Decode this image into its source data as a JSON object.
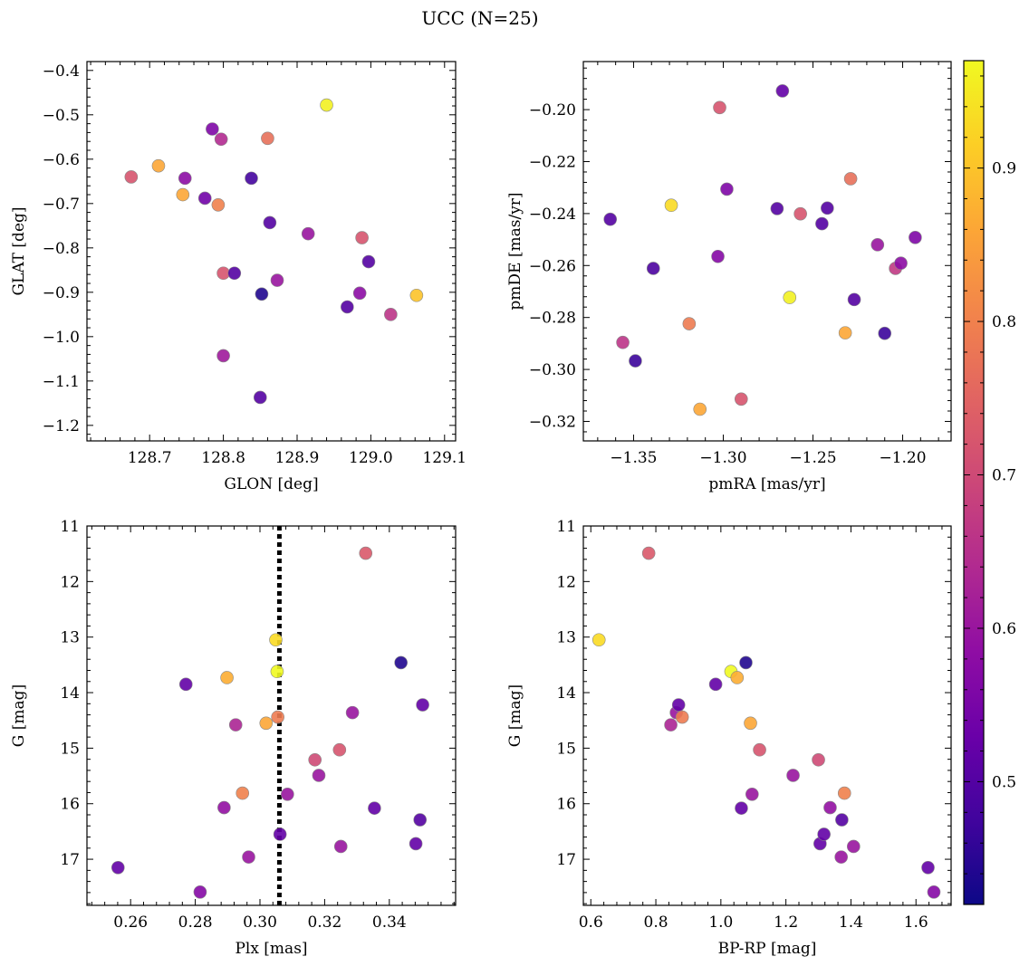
{
  "figure": {
    "suptitle": "UCC (N=25)"
  },
  "colorbar": {
    "cmap": "plasma",
    "range": [
      0.42,
      0.97
    ],
    "ticks": [
      0.5,
      0.6,
      0.7,
      0.8,
      0.9
    ]
  },
  "chart_data": [
    {
      "type": "scatter",
      "id": "glon-glat",
      "xlabel": "GLON [deg]",
      "ylabel": "GLAT [deg]",
      "xlim": [
        128.615,
        129.115
      ],
      "ylim": [
        -1.235,
        -0.38
      ],
      "ylim_inverted": false,
      "xticks": [
        128.7,
        128.8,
        128.9,
        129.0,
        129.1
      ],
      "xtick_labels": [
        "128.7",
        "128.8",
        "128.9",
        "129.0",
        "129.1"
      ],
      "yticks": [
        -1.2,
        -1.1,
        -1.0,
        -0.9,
        -0.8,
        -0.7,
        -0.6,
        -0.5,
        -0.4
      ],
      "ytick_labels": [
        "−1.2",
        "−1.1",
        "−1.0",
        "−0.9",
        "−0.8",
        "−0.7",
        "−0.6",
        "−0.5",
        "−0.4"
      ],
      "points": [
        {
          "x": 128.675,
          "y": -0.64,
          "c": 0.72
        },
        {
          "x": 128.712,
          "y": -0.615,
          "c": 0.86
        },
        {
          "x": 128.745,
          "y": -0.68,
          "c": 0.86
        },
        {
          "x": 128.748,
          "y": -0.643,
          "c": 0.58
        },
        {
          "x": 128.775,
          "y": -0.688,
          "c": 0.54
        },
        {
          "x": 128.785,
          "y": -0.532,
          "c": 0.56
        },
        {
          "x": 128.793,
          "y": -0.703,
          "c": 0.8
        },
        {
          "x": 128.797,
          "y": -0.555,
          "c": 0.64
        },
        {
          "x": 128.8,
          "y": -0.857,
          "c": 0.72
        },
        {
          "x": 128.8,
          "y": -1.043,
          "c": 0.61
        },
        {
          "x": 128.815,
          "y": -0.857,
          "c": 0.5
        },
        {
          "x": 128.838,
          "y": -0.643,
          "c": 0.48
        },
        {
          "x": 128.85,
          "y": -1.137,
          "c": 0.5
        },
        {
          "x": 128.852,
          "y": -0.904,
          "c": 0.44
        },
        {
          "x": 128.86,
          "y": -0.553,
          "c": 0.77
        },
        {
          "x": 128.863,
          "y": -0.743,
          "c": 0.5
        },
        {
          "x": 128.873,
          "y": -0.873,
          "c": 0.6
        },
        {
          "x": 128.915,
          "y": -0.768,
          "c": 0.6
        },
        {
          "x": 128.94,
          "y": -0.478,
          "c": 0.96
        },
        {
          "x": 128.968,
          "y": -0.933,
          "c": 0.5
        },
        {
          "x": 128.985,
          "y": -0.902,
          "c": 0.58
        },
        {
          "x": 128.988,
          "y": -0.777,
          "c": 0.72
        },
        {
          "x": 128.997,
          "y": -0.831,
          "c": 0.5
        },
        {
          "x": 129.027,
          "y": -0.95,
          "c": 0.66
        },
        {
          "x": 129.062,
          "y": -0.907,
          "c": 0.9
        }
      ]
    },
    {
      "type": "scatter",
      "id": "pmra-pmde",
      "xlabel": "pmRA [mas/yr]",
      "ylabel": "pmDE [mas/yr]",
      "xlim": [
        -1.378,
        -1.173
      ],
      "ylim": [
        -0.3275,
        -0.1815
      ],
      "ylim_inverted": false,
      "xticks": [
        -1.35,
        -1.3,
        -1.25,
        -1.2
      ],
      "xtick_labels": [
        "−1.35",
        "−1.30",
        "−1.25",
        "−1.20"
      ],
      "yticks": [
        -0.32,
        -0.3,
        -0.28,
        -0.26,
        -0.24,
        -0.22,
        -0.2
      ],
      "ytick_labels": [
        "−0.32",
        "−0.30",
        "−0.28",
        "−0.26",
        "−0.24",
        "−0.22",
        "−0.20"
      ],
      "points": [
        {
          "x": -1.363,
          "y": -0.2422,
          "c": 0.5
        },
        {
          "x": -1.356,
          "y": -0.2896,
          "c": 0.66
        },
        {
          "x": -1.349,
          "y": -0.2967,
          "c": 0.47
        },
        {
          "x": -1.339,
          "y": -0.2611,
          "c": 0.49
        },
        {
          "x": -1.329,
          "y": -0.2368,
          "c": 0.93
        },
        {
          "x": -1.319,
          "y": -0.2824,
          "c": 0.79
        },
        {
          "x": -1.313,
          "y": -0.3153,
          "c": 0.86
        },
        {
          "x": -1.303,
          "y": -0.2565,
          "c": 0.57
        },
        {
          "x": -1.302,
          "y": -0.1992,
          "c": 0.72
        },
        {
          "x": -1.298,
          "y": -0.2306,
          "c": 0.56
        },
        {
          "x": -1.29,
          "y": -0.3114,
          "c": 0.72
        },
        {
          "x": -1.27,
          "y": -0.2381,
          "c": 0.5
        },
        {
          "x": -1.267,
          "y": -0.1928,
          "c": 0.52
        },
        {
          "x": -1.263,
          "y": -0.2723,
          "c": 0.96
        },
        {
          "x": -1.257,
          "y": -0.2401,
          "c": 0.72
        },
        {
          "x": -1.245,
          "y": -0.2439,
          "c": 0.5
        },
        {
          "x": -1.242,
          "y": -0.2379,
          "c": 0.5
        },
        {
          "x": -1.232,
          "y": -0.2859,
          "c": 0.86
        },
        {
          "x": -1.229,
          "y": -0.2266,
          "c": 0.77
        },
        {
          "x": -1.227,
          "y": -0.2731,
          "c": 0.5
        },
        {
          "x": -1.214,
          "y": -0.252,
          "c": 0.6
        },
        {
          "x": -1.21,
          "y": -0.2861,
          "c": 0.47
        },
        {
          "x": -1.204,
          "y": -0.2611,
          "c": 0.67
        },
        {
          "x": -1.201,
          "y": -0.2591,
          "c": 0.58
        },
        {
          "x": -1.193,
          "y": -0.2492,
          "c": 0.56
        }
      ]
    },
    {
      "type": "scatter",
      "id": "plx-g",
      "xlabel": "Plx [mas]",
      "ylabel": "G [mag]",
      "xlim": [
        0.2465,
        0.3605
      ],
      "ylim": [
        17.83,
        11.0
      ],
      "ylim_inverted": true,
      "xticks": [
        0.26,
        0.28,
        0.3,
        0.32,
        0.34
      ],
      "xtick_labels": [
        "0.26",
        "0.28",
        "0.30",
        "0.32",
        "0.34"
      ],
      "yticks": [
        11,
        12,
        13,
        14,
        15,
        16,
        17
      ],
      "ytick_labels": [
        "11",
        "12",
        "13",
        "14",
        "15",
        "16",
        "17"
      ],
      "vline": {
        "x": 0.306,
        "style": "dotted"
      },
      "points": [
        {
          "x": 0.2561,
          "y": 17.15,
          "c": 0.52
        },
        {
          "x": 0.2771,
          "y": 13.85,
          "c": 0.52
        },
        {
          "x": 0.2815,
          "y": 17.59,
          "c": 0.57
        },
        {
          "x": 0.2889,
          "y": 16.07,
          "c": 0.59
        },
        {
          "x": 0.2898,
          "y": 13.73,
          "c": 0.87
        },
        {
          "x": 0.2925,
          "y": 14.58,
          "c": 0.63
        },
        {
          "x": 0.2946,
          "y": 15.81,
          "c": 0.8
        },
        {
          "x": 0.2965,
          "y": 16.96,
          "c": 0.6
        },
        {
          "x": 0.3019,
          "y": 14.55,
          "c": 0.86
        },
        {
          "x": 0.3049,
          "y": 13.05,
          "c": 0.93
        },
        {
          "x": 0.3053,
          "y": 13.62,
          "c": 0.97
        },
        {
          "x": 0.3055,
          "y": 14.44,
          "c": 0.79
        },
        {
          "x": 0.3062,
          "y": 16.55,
          "c": 0.52
        },
        {
          "x": 0.3085,
          "y": 15.83,
          "c": 0.6
        },
        {
          "x": 0.317,
          "y": 15.21,
          "c": 0.7
        },
        {
          "x": 0.3182,
          "y": 15.49,
          "c": 0.6
        },
        {
          "x": 0.3246,
          "y": 15.03,
          "c": 0.72
        },
        {
          "x": 0.325,
          "y": 16.77,
          "c": 0.6
        },
        {
          "x": 0.3286,
          "y": 14.36,
          "c": 0.6
        },
        {
          "x": 0.3327,
          "y": 11.49,
          "c": 0.73
        },
        {
          "x": 0.3354,
          "y": 16.08,
          "c": 0.52
        },
        {
          "x": 0.3436,
          "y": 13.46,
          "c": 0.44
        },
        {
          "x": 0.3482,
          "y": 16.72,
          "c": 0.52
        },
        {
          "x": 0.3495,
          "y": 16.29,
          "c": 0.5
        },
        {
          "x": 0.3503,
          "y": 14.22,
          "c": 0.52
        }
      ]
    },
    {
      "type": "scatter",
      "id": "bprp-g",
      "xlabel": "BP-RP [mag]",
      "ylabel": "G [mag]",
      "xlim": [
        0.577,
        1.708
      ],
      "ylim": [
        17.83,
        11.0
      ],
      "ylim_inverted": true,
      "xticks": [
        0.6,
        0.8,
        1.0,
        1.2,
        1.4,
        1.6
      ],
      "xtick_labels": [
        "0.6",
        "0.8",
        "1.0",
        "1.2",
        "1.4",
        "1.6"
      ],
      "yticks": [
        11,
        12,
        13,
        14,
        15,
        16,
        17
      ],
      "ytick_labels": [
        "11",
        "12",
        "13",
        "14",
        "15",
        "16",
        "17"
      ],
      "points": [
        {
          "x": 0.625,
          "y": 13.05,
          "c": 0.93
        },
        {
          "x": 0.778,
          "y": 11.49,
          "c": 0.73
        },
        {
          "x": 0.846,
          "y": 14.58,
          "c": 0.63
        },
        {
          "x": 0.863,
          "y": 14.36,
          "c": 0.6
        },
        {
          "x": 0.87,
          "y": 14.22,
          "c": 0.52
        },
        {
          "x": 0.881,
          "y": 14.44,
          "c": 0.79
        },
        {
          "x": 0.984,
          "y": 13.85,
          "c": 0.52
        },
        {
          "x": 1.031,
          "y": 13.62,
          "c": 0.97
        },
        {
          "x": 1.05,
          "y": 13.73,
          "c": 0.87
        },
        {
          "x": 1.063,
          "y": 16.08,
          "c": 0.52
        },
        {
          "x": 1.077,
          "y": 13.46,
          "c": 0.44
        },
        {
          "x": 1.091,
          "y": 14.55,
          "c": 0.86
        },
        {
          "x": 1.096,
          "y": 15.83,
          "c": 0.6
        },
        {
          "x": 1.119,
          "y": 15.03,
          "c": 0.72
        },
        {
          "x": 1.222,
          "y": 15.49,
          "c": 0.6
        },
        {
          "x": 1.3,
          "y": 15.21,
          "c": 0.7
        },
        {
          "x": 1.305,
          "y": 16.72,
          "c": 0.52
        },
        {
          "x": 1.317,
          "y": 16.55,
          "c": 0.52
        },
        {
          "x": 1.336,
          "y": 16.07,
          "c": 0.59
        },
        {
          "x": 1.37,
          "y": 16.96,
          "c": 0.6
        },
        {
          "x": 1.372,
          "y": 16.29,
          "c": 0.5
        },
        {
          "x": 1.38,
          "y": 15.81,
          "c": 0.8
        },
        {
          "x": 1.408,
          "y": 16.77,
          "c": 0.6
        },
        {
          "x": 1.637,
          "y": 17.15,
          "c": 0.52
        },
        {
          "x": 1.655,
          "y": 17.59,
          "c": 0.57
        }
      ]
    }
  ]
}
